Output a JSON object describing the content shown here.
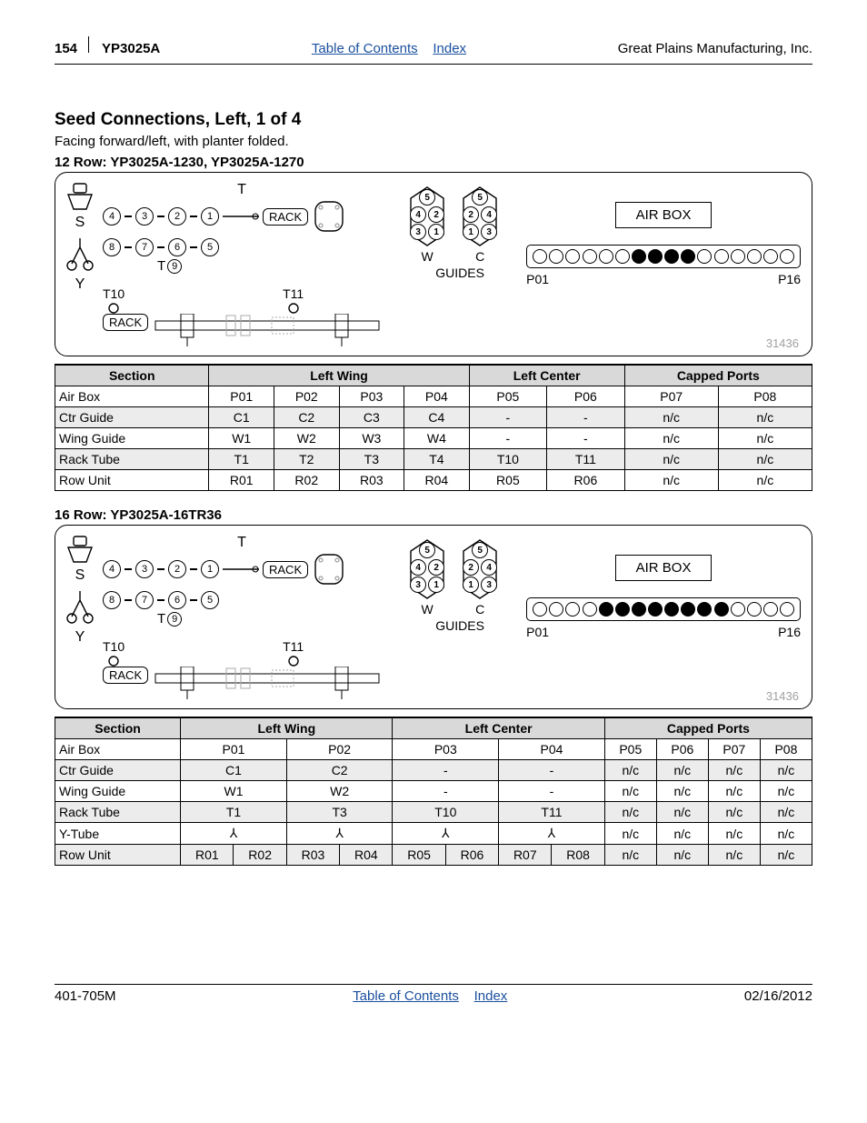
{
  "header": {
    "page_number": "154",
    "model": "YP3025A",
    "toc": "Table of Contents",
    "index": "Index",
    "company": "Great Plains Manufacturing, Inc."
  },
  "title": "Seed Connections, Left, 1 of 4",
  "subtitle": "Facing forward/left, with planter folded.",
  "section1": {
    "subhead": "12 Row: YP3025A-1230, YP3025A-1270",
    "labels": {
      "T": "T",
      "S": "S",
      "Y": "Y",
      "RACK": "RACK",
      "T9": "9",
      "T10": "T10",
      "T11": "T11",
      "W": "W",
      "C": "C",
      "GUIDES": "GUIDES",
      "AIRBOX": "AIR BOX",
      "P01": "P01",
      "P16": "P16"
    },
    "row1": [
      "4",
      "3",
      "2",
      "1"
    ],
    "row2": [
      "8",
      "7",
      "6",
      "5"
    ],
    "guideW": [
      "5",
      "4",
      "2",
      "3",
      "1"
    ],
    "guideC": [
      "5",
      "2",
      "4",
      "1",
      "3"
    ],
    "ports_filled": [
      false,
      false,
      false,
      false,
      false,
      false,
      true,
      true,
      true,
      true,
      false,
      false,
      false,
      false,
      false,
      false
    ],
    "diagram_id": "31436"
  },
  "table1": {
    "headers": {
      "section": "Section",
      "lw": "Left Wing",
      "lc": "Left Center",
      "cp": "Capped Ports"
    },
    "rows": [
      {
        "label": "Air Box",
        "cells": [
          "P01",
          "P02",
          "P03",
          "P04",
          "P05",
          "P06",
          "P07",
          "P08"
        ],
        "shade": false
      },
      {
        "label": "Ctr Guide",
        "cells": [
          "C1",
          "C2",
          "C3",
          "C4",
          "-",
          "-",
          "n/c",
          "n/c"
        ],
        "shade": true
      },
      {
        "label": "Wing Guide",
        "cells": [
          "W1",
          "W2",
          "W3",
          "W4",
          "-",
          "-",
          "n/c",
          "n/c"
        ],
        "shade": false
      },
      {
        "label": "Rack Tube",
        "cells": [
          "T1",
          "T2",
          "T3",
          "T4",
          "T10",
          "T11",
          "n/c",
          "n/c"
        ],
        "shade": true
      },
      {
        "label": "Row Unit",
        "cells": [
          "R01",
          "R02",
          "R03",
          "R04",
          "R05",
          "R06",
          "n/c",
          "n/c"
        ],
        "shade": false
      }
    ]
  },
  "section2": {
    "subhead": "16 Row: YP3025A-16TR36",
    "labels": {
      "T": "T",
      "S": "S",
      "Y": "Y",
      "RACK": "RACK",
      "T9": "9",
      "T10": "T10",
      "T11": "T11",
      "W": "W",
      "C": "C",
      "GUIDES": "GUIDES",
      "AIRBOX": "AIR BOX",
      "P01": "P01",
      "P16": "P16"
    },
    "row1": [
      "4",
      "3",
      "2",
      "1"
    ],
    "row2": [
      "8",
      "7",
      "6",
      "5"
    ],
    "guideW": [
      "5",
      "4",
      "2",
      "3",
      "1"
    ],
    "guideC": [
      "5",
      "2",
      "4",
      "1",
      "3"
    ],
    "ports_filled": [
      false,
      false,
      false,
      false,
      true,
      true,
      true,
      true,
      true,
      true,
      true,
      true,
      false,
      false,
      false,
      false
    ],
    "diagram_id": "31436"
  },
  "table2": {
    "headers": {
      "section": "Section",
      "lw": "Left Wing",
      "lc": "Left Center",
      "cp": "Capped Ports"
    },
    "rows": [
      {
        "label": "Air Box",
        "cells": [
          "P01",
          "P02",
          "P03",
          "P04",
          "P05",
          "P06",
          "P07",
          "P08"
        ],
        "split": [
          1,
          1,
          1,
          1,
          1,
          1,
          1,
          1
        ],
        "shade": false
      },
      {
        "label": "Ctr Guide",
        "cells": [
          "C1",
          "C2",
          "-",
          "-",
          "n/c",
          "n/c",
          "n/c",
          "n/c"
        ],
        "split": [
          1,
          1,
          1,
          1,
          1,
          1,
          1,
          1
        ],
        "shade": true
      },
      {
        "label": "Wing Guide",
        "cells": [
          "W1",
          "W2",
          "-",
          "-",
          "n/c",
          "n/c",
          "n/c",
          "n/c"
        ],
        "split": [
          1,
          1,
          1,
          1,
          1,
          1,
          1,
          1
        ],
        "shade": false
      },
      {
        "label": "Rack Tube",
        "cells": [
          "T1",
          "T3",
          "T10",
          "T11",
          "n/c",
          "n/c",
          "n/c",
          "n/c"
        ],
        "split": [
          1,
          1,
          1,
          1,
          1,
          1,
          1,
          1
        ],
        "shade": true
      },
      {
        "label": "Y-Tube",
        "cells": [
          "⅄",
          "⅄",
          "⅄",
          "⅄",
          "n/c",
          "n/c",
          "n/c",
          "n/c"
        ],
        "split": [
          1,
          1,
          1,
          1,
          1,
          1,
          1,
          1
        ],
        "shade": false
      },
      {
        "label": "Row Unit",
        "cells": [
          "R01",
          "R02",
          "R03",
          "R04",
          "R05",
          "R06",
          "R07",
          "R08",
          "n/c",
          "n/c",
          "n/c",
          "n/c"
        ],
        "split": [
          2,
          2,
          2,
          2,
          1,
          1,
          1,
          1
        ],
        "shade": true
      }
    ]
  },
  "footer": {
    "doc_id": "401-705M",
    "toc": "Table of Contents",
    "index": "Index",
    "date": "02/16/2012"
  }
}
